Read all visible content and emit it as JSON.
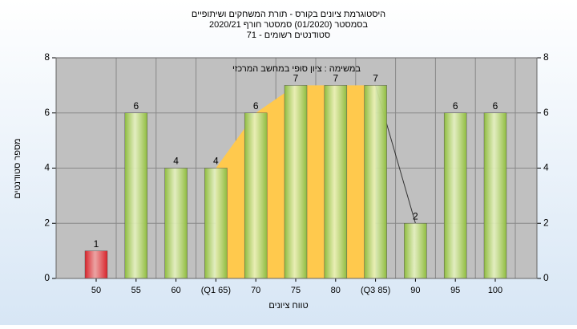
{
  "chart_data": {
    "type": "bar",
    "title": "היסטוגרמת ציונים בקורס - תורת המשחקים ושיתופיים",
    "subtitle": "בסמסטר  (01/2020)  סמסטר חורף  2020/21",
    "subtitle2": "סטודנטים רשומים - 71",
    "annotation": "במשימה : ציון סופי במחשב המרכזי",
    "xlabel": "טווח ציונים",
    "ylabel": "מספר סטודנטים",
    "categories": [
      "50",
      "55",
      "60",
      "(Q1 65)",
      "70",
      "75",
      "80",
      "(Q3 85)",
      "90",
      "95",
      "100"
    ],
    "values": [
      1,
      6,
      4,
      4,
      6,
      7,
      7,
      7,
      2,
      6,
      6
    ],
    "colors": [
      "#d8232a",
      "#8fbc3f",
      "#8fbc3f",
      "#8fbc3f",
      "#8fbc3f",
      "#8fbc3f",
      "#8fbc3f",
      "#8fbc3f",
      "#8fbc3f",
      "#8fbc3f",
      "#8fbc3f"
    ],
    "highlight_color": "#ffc94d",
    "ylim": [
      0,
      8
    ],
    "yticks": [
      0,
      2,
      4,
      6,
      8
    ],
    "y2lim": [
      0,
      8
    ],
    "y2ticks": [
      0,
      2,
      4,
      6,
      8
    ],
    "grid": true
  }
}
